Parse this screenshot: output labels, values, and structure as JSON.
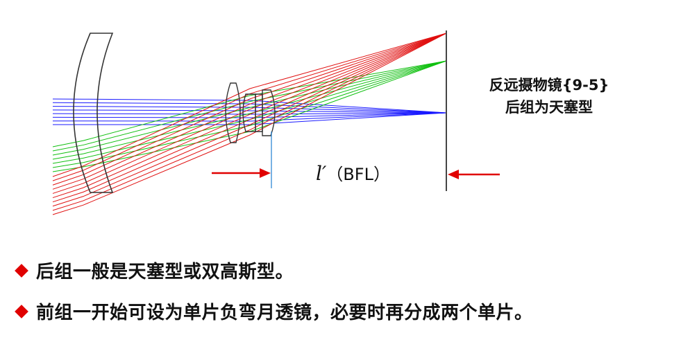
{
  "diagram": {
    "caption_line1": "反远摄物镜{9-5}",
    "caption_line2": "后组为天塞型",
    "bfl_symbol": "l′",
    "bfl_text": "（BFL）",
    "colors": {
      "blue_rays": "#1a1aff",
      "green_rays": "#10c010",
      "red_rays": "#e01010",
      "lens_outline": "#333333",
      "image_plane": "#444444",
      "marker_line": "#1e7fd0",
      "arrows": "#e00000"
    }
  },
  "bullets": [
    {
      "text": "后组一般是天塞型或双高斯型。",
      "icon": "red-diamond-icon"
    },
    {
      "text": "前组一开始可设为单片负弯月透镜，必要时再分成两个单片。",
      "icon": "red-diamond-icon"
    }
  ]
}
